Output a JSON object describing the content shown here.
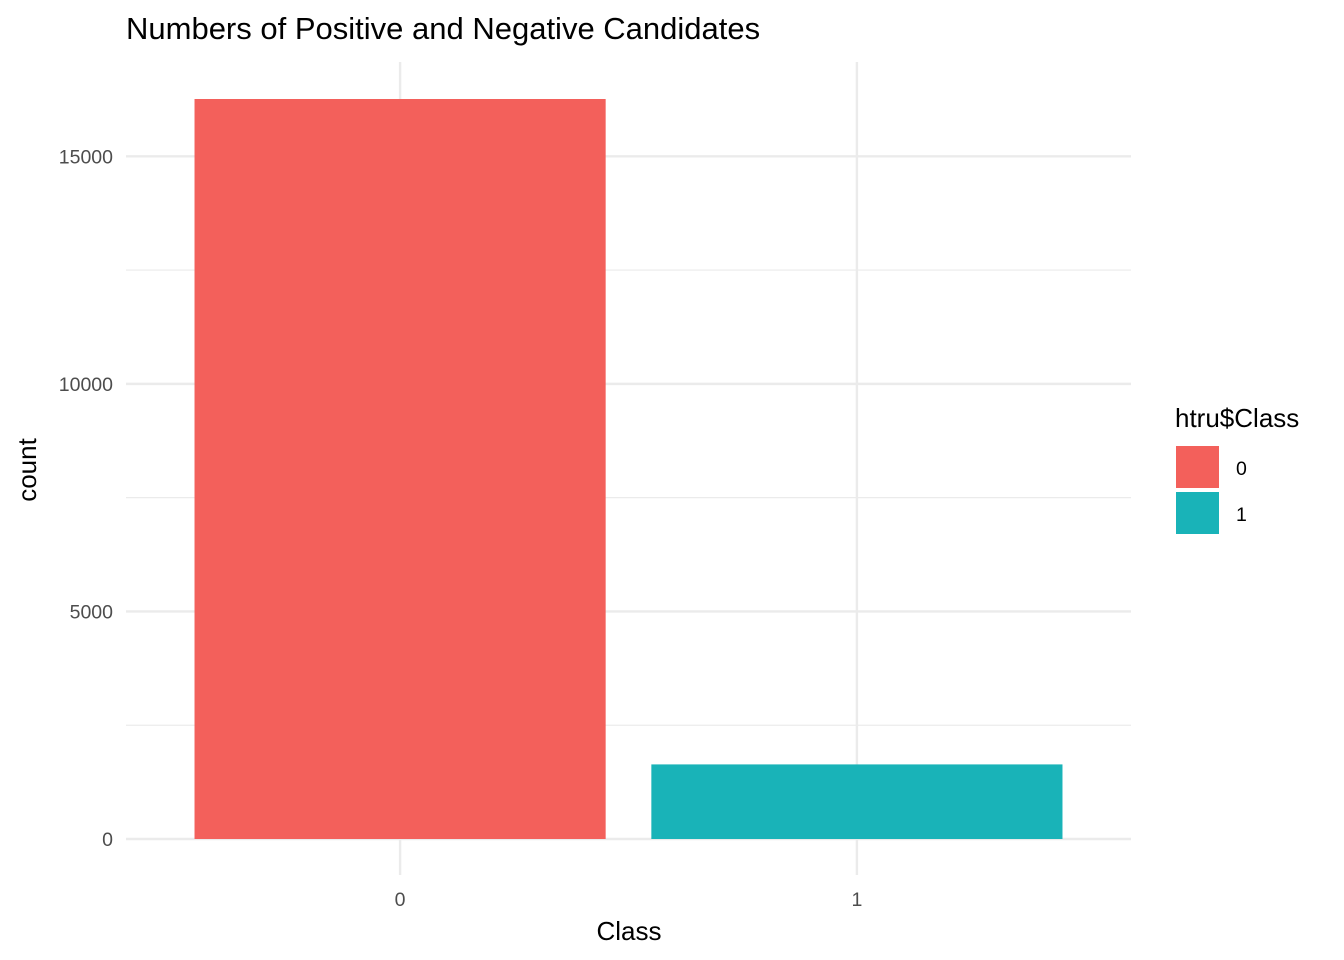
{
  "chart_data": {
    "type": "bar",
    "title": "Numbers of Positive and Negative Candidates",
    "xlabel": "Class",
    "ylabel": "count",
    "categories": [
      "0",
      "1"
    ],
    "values": [
      16259,
      1639
    ],
    "ylim": [
      0,
      16259
    ],
    "yticks": [
      0,
      5000,
      10000,
      15000
    ],
    "ytick_labels": [
      "0",
      "5000",
      "10000",
      "15000"
    ],
    "grid": true,
    "legend": {
      "title": "htru$Class",
      "position": "right",
      "entries": [
        {
          "label": "0",
          "color": "#F8766D"
        },
        {
          "label": "1",
          "color": "#00BFC4"
        }
      ]
    },
    "colors": [
      "#F3605B",
      "#19B3B8"
    ]
  }
}
